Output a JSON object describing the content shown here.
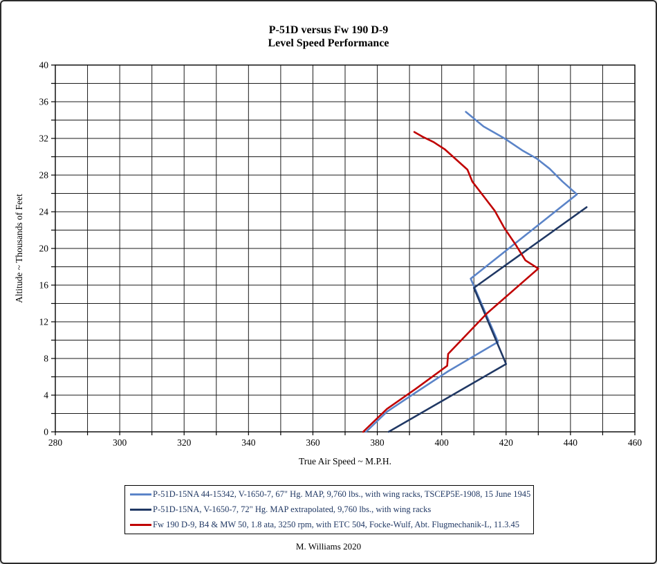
{
  "title": {
    "line1": "P-51D versus Fw  190 D-9",
    "line2": "Level Speed Performance"
  },
  "credit": "M. Williams 2020",
  "chart_data": {
    "type": "line",
    "title": "P-51D versus Fw 190 D-9 Level Speed Performance",
    "xlabel": "True Air Speed ~ M.P.H.",
    "ylabel": "Altitude ~ Thousands of Feet",
    "xlim": [
      280,
      460
    ],
    "ylim": [
      0,
      40
    ],
    "x_tick_labels": [
      280,
      300,
      320,
      340,
      360,
      380,
      400,
      420,
      440,
      460
    ],
    "x_minor_step": 10,
    "y_tick_labels": [
      0,
      4,
      8,
      12,
      16,
      20,
      24,
      28,
      32,
      36,
      40
    ],
    "y_minor_step": 2,
    "grid": {
      "x_step": 10,
      "y_step": 2,
      "on": true
    },
    "legend_position": "bottom",
    "series": [
      {
        "name": "P-51D-15NA 44-15342, V-1650-7, 67\" Hg. MAP, 9,760 lbs., with wing racks, TSCEP5E-1908, 15 June 1945",
        "color": "#5b84c8",
        "points": [
          [
            407.5,
            34.9
          ],
          [
            413,
            33.3
          ],
          [
            419.5,
            32.0
          ],
          [
            425,
            30.7
          ],
          [
            429.5,
            29.8
          ],
          [
            433.5,
            28.7
          ],
          [
            437.5,
            27.3
          ],
          [
            442,
            25.9
          ],
          [
            409,
            16.7
          ],
          [
            417.5,
            9.8
          ],
          [
            402,
            6.6
          ],
          [
            392,
            4.3
          ],
          [
            383,
            2.2
          ],
          [
            376.5,
            0
          ]
        ]
      },
      {
        "name": "P-51D-15NA, V-1650-7, 72\" Hg. MAP extrapolated, 9,760 lbs., with wing racks",
        "color": "#203864",
        "points": [
          [
            445,
            24.5
          ],
          [
            410,
            15.7
          ],
          [
            420,
            7.4
          ],
          [
            383.5,
            0
          ]
        ]
      },
      {
        "name": "Fw 190 D-9, B4 & MW 50, 1.8 ata, 3250 rpm, with ETC 504, Focke-Wulf, Abt. Flugmechanik-L, 11.3.45",
        "color": "#c00000",
        "points": [
          [
            391.5,
            32.7
          ],
          [
            394,
            32.2
          ],
          [
            397.5,
            31.6
          ],
          [
            401,
            30.8
          ],
          [
            404.5,
            29.7
          ],
          [
            408,
            28.6
          ],
          [
            409.5,
            27.3
          ],
          [
            413,
            25.7
          ],
          [
            416.5,
            24.1
          ],
          [
            419.5,
            22.2
          ],
          [
            423,
            20.4
          ],
          [
            426,
            18.7
          ],
          [
            430,
            17.8
          ],
          [
            414,
            12.9
          ],
          [
            402,
            8.5
          ],
          [
            401.7,
            7.2
          ],
          [
            392,
            4.7
          ],
          [
            383,
            2.5
          ],
          [
            375.6,
            0
          ]
        ]
      }
    ]
  }
}
